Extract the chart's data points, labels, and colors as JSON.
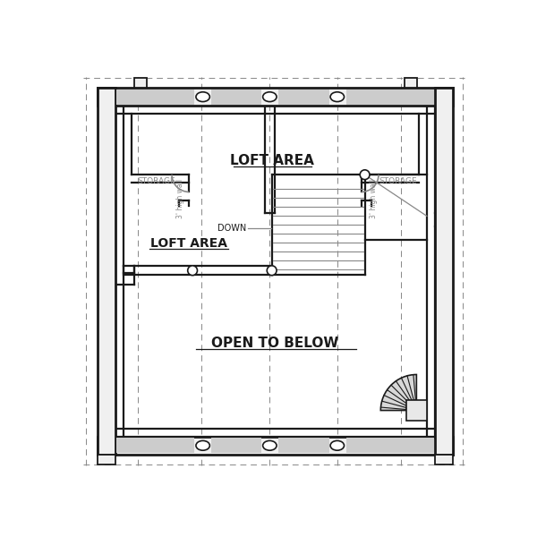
{
  "bg_color": "#ffffff",
  "line_color": "#1a1a1a",
  "dashed_color": "#888888",
  "gray_color": "#888888",
  "beam_fc": "#f0f0f0",
  "wall_fc": "#ffffff",
  "stair_fc": "#e8e8e8",
  "spiral_fc": "#d8d8d8",
  "text_loft_upper": "LOFT AREA",
  "text_loft_lower": "LOFT AREA",
  "text_open_below": "OPEN TO BELOW",
  "text_down": "DOWN",
  "text_storage_left": "STORAGE",
  "text_storage_right": "STORAGE",
  "text_high_wall_left": "3' high wall",
  "text_high_wall_right": "3' high wall"
}
